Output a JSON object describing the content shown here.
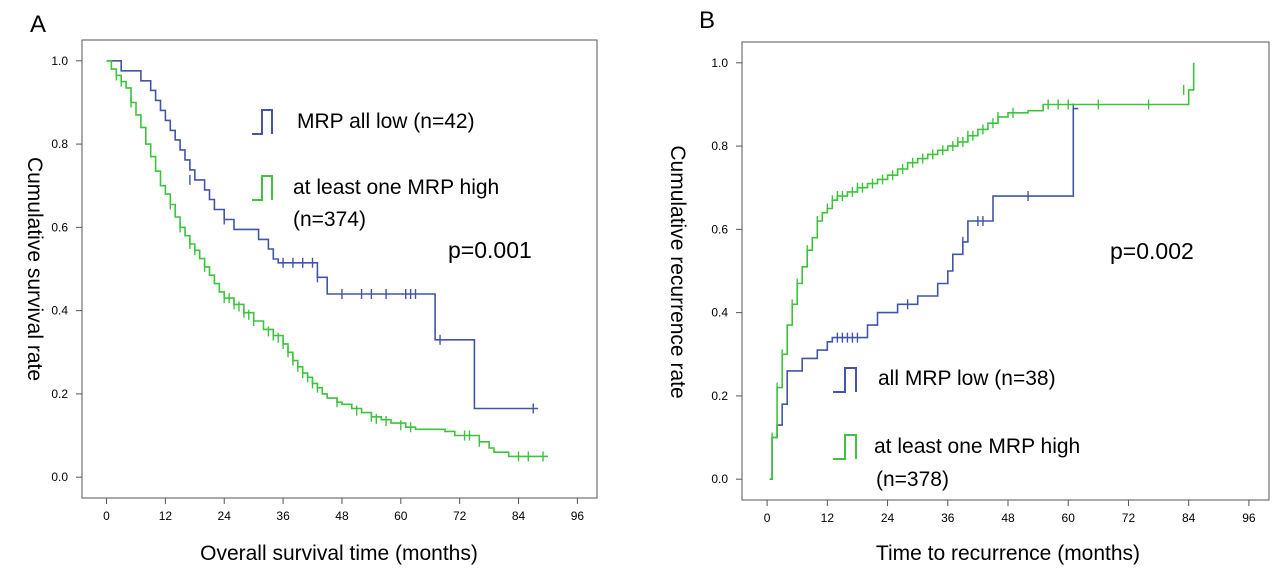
{
  "chart_data": [
    {
      "type": "line",
      "panel_label": "A",
      "xlabel": "Overall survival time (months)",
      "ylabel": "Cumulative survival rate",
      "xlim": [
        -5,
        100
      ],
      "ylim": [
        -0.05,
        1.05
      ],
      "xticks": [
        "0",
        "12",
        "24",
        "36",
        "48",
        "60",
        "72",
        "84",
        "96"
      ],
      "yticks": [
        "0.0",
        "0.2",
        "0.4",
        "0.6",
        "0.8",
        "1.0"
      ],
      "annotation": "p=0.001",
      "grid": false,
      "legend_position": "upper-middle",
      "series": [
        {
          "name": "MRP all low (n=42)",
          "legend_lines": [
            "MRP all low (n=42)"
          ],
          "color": "#4255a8",
          "step": [
            [
              0,
              1.0
            ],
            [
              3,
              0.976
            ],
            [
              7,
              0.952
            ],
            [
              9,
              0.929
            ],
            [
              10,
              0.905
            ],
            [
              11,
              0.881
            ],
            [
              12,
              0.857
            ],
            [
              13,
              0.833
            ],
            [
              14,
              0.81
            ],
            [
              15,
              0.786
            ],
            [
              16,
              0.762
            ],
            [
              17,
              0.738
            ],
            [
              18,
              0.714
            ],
            [
              20,
              0.69
            ],
            [
              21,
              0.667
            ],
            [
              22,
              0.643
            ],
            [
              24,
              0.619
            ],
            [
              26,
              0.595
            ],
            [
              31,
              0.571
            ],
            [
              33,
              0.548
            ],
            [
              34,
              0.524
            ],
            [
              35,
              0.515
            ],
            [
              43,
              0.48
            ],
            [
              45,
              0.44
            ],
            [
              67,
              0.33
            ],
            [
              75,
              0.165
            ],
            [
              88,
              0.165
            ]
          ],
          "censor": [
            [
              17,
              0.714
            ],
            [
              24,
              0.619
            ],
            [
              36,
              0.515
            ],
            [
              38,
              0.515
            ],
            [
              40,
              0.515
            ],
            [
              42,
              0.515
            ],
            [
              43,
              0.48
            ],
            [
              48,
              0.44
            ],
            [
              52,
              0.44
            ],
            [
              54,
              0.44
            ],
            [
              57,
              0.44
            ],
            [
              61,
              0.44
            ],
            [
              62,
              0.44
            ],
            [
              63,
              0.44
            ],
            [
              68,
              0.33
            ],
            [
              87,
              0.165
            ]
          ]
        },
        {
          "name": "at least one MRP high (n=374)",
          "legend_lines": [
            "at least one MRP high",
            "(n=374)"
          ],
          "color": "#3cc43c",
          "step": [
            [
              0,
              1.0
            ],
            [
              1,
              0.98
            ],
            [
              2,
              0.965
            ],
            [
              3,
              0.95
            ],
            [
              4,
              0.935
            ],
            [
              5,
              0.9
            ],
            [
              6,
              0.87
            ],
            [
              7,
              0.84
            ],
            [
              8,
              0.8
            ],
            [
              9,
              0.77
            ],
            [
              10,
              0.735
            ],
            [
              11,
              0.7
            ],
            [
              12,
              0.68
            ],
            [
              13,
              0.655
            ],
            [
              14,
              0.625
            ],
            [
              15,
              0.6
            ],
            [
              16,
              0.58
            ],
            [
              17,
              0.56
            ],
            [
              18,
              0.545
            ],
            [
              19,
              0.525
            ],
            [
              20,
              0.505
            ],
            [
              21,
              0.485
            ],
            [
              22,
              0.465
            ],
            [
              23,
              0.445
            ],
            [
              24,
              0.43
            ],
            [
              26,
              0.415
            ],
            [
              28,
              0.395
            ],
            [
              30,
              0.375
            ],
            [
              32,
              0.355
            ],
            [
              34,
              0.34
            ],
            [
              36,
              0.32
            ],
            [
              37,
              0.3
            ],
            [
              38,
              0.28
            ],
            [
              39,
              0.265
            ],
            [
              40,
              0.25
            ],
            [
              41,
              0.24
            ],
            [
              42,
              0.225
            ],
            [
              43,
              0.215
            ],
            [
              44,
              0.2
            ],
            [
              45,
              0.19
            ],
            [
              47,
              0.18
            ],
            [
              48,
              0.175
            ],
            [
              50,
              0.165
            ],
            [
              52,
              0.155
            ],
            [
              54,
              0.145
            ],
            [
              56,
              0.138
            ],
            [
              58,
              0.13
            ],
            [
              61,
              0.12
            ],
            [
              63,
              0.115
            ],
            [
              69,
              0.11
            ],
            [
              71,
              0.1
            ],
            [
              76,
              0.085
            ],
            [
              78,
              0.07
            ],
            [
              79,
              0.06
            ],
            [
              82,
              0.05
            ],
            [
              90,
              0.05
            ]
          ],
          "censor": [
            [
              2,
              0.965
            ],
            [
              3,
              0.95
            ],
            [
              5,
              0.9
            ],
            [
              13,
              0.655
            ],
            [
              15,
              0.6
            ],
            [
              17,
              0.56
            ],
            [
              18,
              0.545
            ],
            [
              20,
              0.505
            ],
            [
              24,
              0.43
            ],
            [
              25,
              0.43
            ],
            [
              26,
              0.415
            ],
            [
              27,
              0.41
            ],
            [
              28,
              0.395
            ],
            [
              29,
              0.39
            ],
            [
              30,
              0.375
            ],
            [
              33,
              0.35
            ],
            [
              34,
              0.34
            ],
            [
              35,
              0.335
            ],
            [
              36,
              0.32
            ],
            [
              37,
              0.3
            ],
            [
              38,
              0.28
            ],
            [
              39,
              0.265
            ],
            [
              40,
              0.25
            ],
            [
              41,
              0.24
            ],
            [
              42,
              0.225
            ],
            [
              43,
              0.215
            ],
            [
              47,
              0.18
            ],
            [
              51,
              0.16
            ],
            [
              54,
              0.145
            ],
            [
              55,
              0.14
            ],
            [
              57,
              0.135
            ],
            [
              60,
              0.125
            ],
            [
              62,
              0.12
            ],
            [
              73,
              0.1
            ],
            [
              74,
              0.1
            ],
            [
              76,
              0.085
            ],
            [
              84,
              0.05
            ],
            [
              86,
              0.05
            ],
            [
              89,
              0.05
            ]
          ]
        }
      ]
    },
    {
      "type": "line",
      "panel_label": "B",
      "xlabel": "Time to recurrence (months)",
      "ylabel": "Cumulative recurrence rate",
      "xlim": [
        -5,
        100
      ],
      "ylim": [
        -0.05,
        1.05
      ],
      "xticks": [
        "0",
        "12",
        "24",
        "36",
        "48",
        "60",
        "72",
        "84",
        "96"
      ],
      "yticks": [
        "0.0",
        "0.2",
        "0.4",
        "0.6",
        "0.8",
        "1.0"
      ],
      "annotation": "p=0.002",
      "grid": false,
      "legend_position": "lower-middle",
      "series": [
        {
          "name": "all MRP low (n=38)",
          "legend_lines": [
            "all MRP low (n=38)"
          ],
          "color": "#4255a8",
          "step": [
            [
              0.5,
              0.0
            ],
            [
              1,
              0.1
            ],
            [
              2,
              0.13
            ],
            [
              3,
              0.18
            ],
            [
              4,
              0.26
            ],
            [
              7,
              0.29
            ],
            [
              10,
              0.31
            ],
            [
              12,
              0.33
            ],
            [
              13,
              0.34
            ],
            [
              20,
              0.37
            ],
            [
              22,
              0.4
            ],
            [
              26,
              0.42
            ],
            [
              30,
              0.44
            ],
            [
              34,
              0.47
            ],
            [
              36,
              0.5
            ],
            [
              37,
              0.54
            ],
            [
              39,
              0.57
            ],
            [
              40,
              0.62
            ],
            [
              45,
              0.68
            ],
            [
              61,
              0.89
            ],
            [
              62,
              0.89
            ]
          ],
          "censor": [
            [
              14,
              0.34
            ],
            [
              15,
              0.34
            ],
            [
              16,
              0.34
            ],
            [
              17,
              0.34
            ],
            [
              18,
              0.34
            ],
            [
              28,
              0.42
            ],
            [
              39,
              0.57
            ],
            [
              42,
              0.62
            ],
            [
              43,
              0.62
            ],
            [
              52,
              0.68
            ],
            [
              61,
              0.89
            ]
          ]
        },
        {
          "name": "at least one MRP high (n=378)",
          "legend_lines": [
            "at least one MRP high",
            "(n=378)"
          ],
          "color": "#3cc43c",
          "step": [
            [
              0.5,
              0.0
            ],
            [
              1,
              0.1
            ],
            [
              2,
              0.22
            ],
            [
              3,
              0.3
            ],
            [
              4,
              0.37
            ],
            [
              5,
              0.42
            ],
            [
              6,
              0.47
            ],
            [
              7,
              0.51
            ],
            [
              8,
              0.55
            ],
            [
              9,
              0.58
            ],
            [
              10,
              0.62
            ],
            [
              11,
              0.64
            ],
            [
              12,
              0.65
            ],
            [
              13,
              0.67
            ],
            [
              14,
              0.68
            ],
            [
              16,
              0.69
            ],
            [
              18,
              0.7
            ],
            [
              20,
              0.71
            ],
            [
              22,
              0.72
            ],
            [
              24,
              0.73
            ],
            [
              26,
              0.745
            ],
            [
              28,
              0.76
            ],
            [
              30,
              0.77
            ],
            [
              32,
              0.78
            ],
            [
              34,
              0.79
            ],
            [
              36,
              0.8
            ],
            [
              38,
              0.81
            ],
            [
              40,
              0.825
            ],
            [
              42,
              0.84
            ],
            [
              44,
              0.855
            ],
            [
              46,
              0.87
            ],
            [
              48,
              0.88
            ],
            [
              52,
              0.885
            ],
            [
              55,
              0.9
            ],
            [
              60,
              0.9
            ],
            [
              84,
              0.935
            ],
            [
              85,
              1.0
            ]
          ],
          "censor": [
            [
              1,
              0.1
            ],
            [
              2,
              0.22
            ],
            [
              3,
              0.3
            ],
            [
              5,
              0.42
            ],
            [
              6,
              0.47
            ],
            [
              8,
              0.55
            ],
            [
              10,
              0.62
            ],
            [
              12,
              0.65
            ],
            [
              13,
              0.67
            ],
            [
              14,
              0.68
            ],
            [
              15,
              0.68
            ],
            [
              17,
              0.69
            ],
            [
              18,
              0.7
            ],
            [
              19,
              0.7
            ],
            [
              21,
              0.71
            ],
            [
              23,
              0.72
            ],
            [
              25,
              0.73
            ],
            [
              27,
              0.745
            ],
            [
              29,
              0.76
            ],
            [
              31,
              0.77
            ],
            [
              33,
              0.78
            ],
            [
              35,
              0.79
            ],
            [
              37,
              0.8
            ],
            [
              38,
              0.81
            ],
            [
              39,
              0.81
            ],
            [
              40,
              0.825
            ],
            [
              41,
              0.825
            ],
            [
              43,
              0.84
            ],
            [
              45,
              0.855
            ],
            [
              46,
              0.87
            ],
            [
              49,
              0.88
            ],
            [
              56,
              0.9
            ],
            [
              58,
              0.9
            ],
            [
              60,
              0.9
            ],
            [
              66,
              0.9
            ],
            [
              76,
              0.9
            ],
            [
              83,
              0.935
            ]
          ]
        }
      ]
    }
  ]
}
